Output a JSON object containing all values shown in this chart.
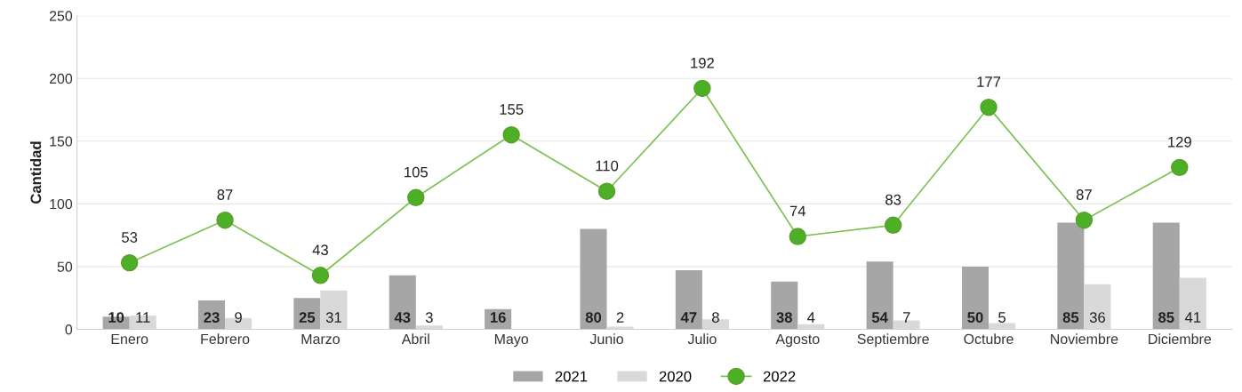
{
  "chart_data": {
    "type": "bar",
    "ylabel": "Cantidad",
    "categories": [
      "Enero",
      "Febrero",
      "Marzo",
      "Abril",
      "Mayo",
      "Junio",
      "Julio",
      "Agosto",
      "Septiembre",
      "Octubre",
      "Noviembre",
      "Diciembre"
    ],
    "series": [
      {
        "name": "2021",
        "color": "#a6a6a6",
        "values": [
          10,
          23,
          25,
          43,
          16,
          80,
          47,
          38,
          54,
          50,
          85,
          85
        ],
        "value_labels": [
          "10",
          "23",
          "25",
          "43",
          "16",
          "80",
          "47",
          "38",
          "54",
          "50",
          "85",
          "85"
        ]
      },
      {
        "name": "2020",
        "color": "#d9d9d9",
        "values": [
          11,
          9,
          31,
          3,
          null,
          2,
          8,
          4,
          7,
          5,
          36,
          41
        ],
        "value_labels": [
          "11",
          "9",
          "31",
          "3",
          null,
          "2",
          "8",
          "4",
          "7",
          "5",
          "36",
          "41"
        ]
      },
      {
        "name": "2022",
        "type": "line",
        "color": "#4caf25",
        "values": [
          53,
          87,
          43,
          105,
          155,
          110,
          192,
          74,
          83,
          177,
          87,
          129
        ],
        "value_labels": [
          "53",
          "87",
          "43",
          "105",
          "155",
          "110",
          "192",
          "74",
          "83",
          "177",
          "87",
          "129"
        ]
      }
    ],
    "ylim": [
      0,
      250
    ],
    "yticks": [
      0,
      50,
      100,
      150,
      200,
      250
    ],
    "grid": "y",
    "legend": "bottom",
    "marker": "circle"
  }
}
